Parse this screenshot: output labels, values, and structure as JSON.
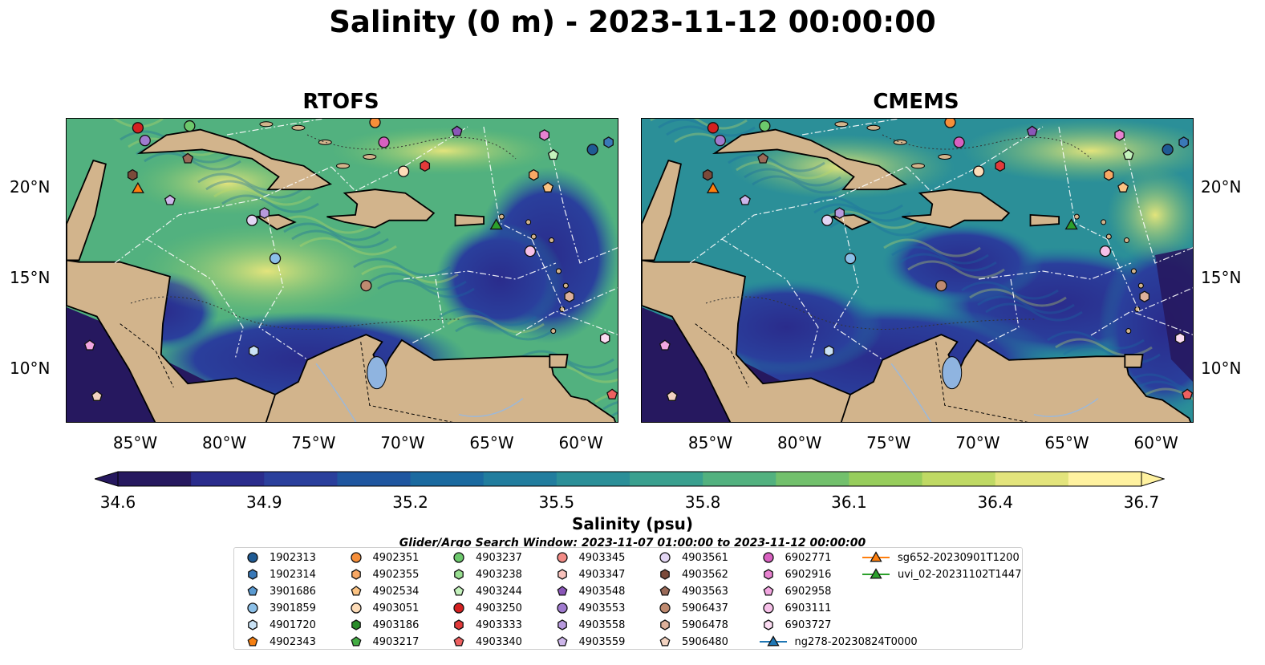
{
  "title": "Salinity (0 m) - 2023-11-12 00:00:00",
  "panels": [
    {
      "name": "RTOFS"
    },
    {
      "name": "CMEMS"
    }
  ],
  "lon_ticks": [
    "85°W",
    "80°W",
    "75°W",
    "70°W",
    "65°W",
    "60°W"
  ],
  "lat_ticks": [
    "20°N",
    "15°N",
    "10°N"
  ],
  "colorbar": {
    "label": "Salinity (psu)",
    "ticks": [
      "34.6",
      "34.9",
      "35.2",
      "35.5",
      "35.8",
      "36.1",
      "36.4",
      "36.7"
    ],
    "colors": [
      "#26185f",
      "#2a2c8c",
      "#2a3f9c",
      "#1f56a0",
      "#1b6aa0",
      "#217d9e",
      "#2b8f98",
      "#3aa08f",
      "#52b17f",
      "#72c06c",
      "#97cd5c",
      "#bfd964",
      "#e3e47c",
      "#fff2a0"
    ]
  },
  "search_window": "Glider/Argo Search Window: 2023-11-07 01:00:00 to 2023-11-12 00:00:00",
  "legend": [
    {
      "label": "1902313",
      "shape": "circle",
      "color": "#1f5b94"
    },
    {
      "label": "1902314",
      "shape": "hexagon",
      "color": "#3a79b8"
    },
    {
      "label": "3901686",
      "shape": "pentagon",
      "color": "#5a9ad1"
    },
    {
      "label": "3901859",
      "shape": "circle",
      "color": "#8cc0e8"
    },
    {
      "label": "4901720",
      "shape": "hexagon",
      "color": "#c9e2f5"
    },
    {
      "label": "4902343",
      "shape": "pentagon",
      "color": "#f57f11"
    },
    {
      "label": "4902351",
      "shape": "circle",
      "color": "#f78f3a"
    },
    {
      "label": "4902355",
      "shape": "hexagon",
      "color": "#f9a864"
    },
    {
      "label": "4902534",
      "shape": "pentagon",
      "color": "#fbc383"
    },
    {
      "label": "4903051",
      "shape": "circle",
      "color": "#fddcb8"
    },
    {
      "label": "4903186",
      "shape": "hexagon",
      "color": "#2a8c2a"
    },
    {
      "label": "4903217",
      "shape": "pentagon",
      "color": "#44ad44"
    },
    {
      "label": "4903237",
      "shape": "circle",
      "color": "#6cc86c"
    },
    {
      "label": "4903238",
      "shape": "hexagon",
      "color": "#98de90"
    },
    {
      "label": "4903244",
      "shape": "pentagon",
      "color": "#c4f2bc"
    },
    {
      "label": "4903250",
      "shape": "circle",
      "color": "#d42020"
    },
    {
      "label": "4903333",
      "shape": "hexagon",
      "color": "#e33a3a"
    },
    {
      "label": "4903340",
      "shape": "pentagon",
      "color": "#ef6060"
    },
    {
      "label": "4903345",
      "shape": "circle",
      "color": "#f28b86"
    },
    {
      "label": "4903347",
      "shape": "hexagon",
      "color": "#f9c2bc"
    },
    {
      "label": "4903548",
      "shape": "pentagon",
      "color": "#8a56b8"
    },
    {
      "label": "4903553",
      "shape": "circle",
      "color": "#a07bcf"
    },
    {
      "label": "4903558",
      "shape": "hexagon",
      "color": "#b89ade"
    },
    {
      "label": "4903559",
      "shape": "pentagon",
      "color": "#cdb6ea"
    },
    {
      "label": "4903561",
      "shape": "circle",
      "color": "#e3d6f4"
    },
    {
      "label": "4903562",
      "shape": "hexagon",
      "color": "#7b4a3a"
    },
    {
      "label": "4903563",
      "shape": "pentagon",
      "color": "#9a6a58"
    },
    {
      "label": "5906437",
      "shape": "circle",
      "color": "#bf8a70"
    },
    {
      "label": "5906478",
      "shape": "hexagon",
      "color": "#ddb09a"
    },
    {
      "label": "5906480",
      "shape": "pentagon",
      "color": "#f2d2c0"
    },
    {
      "label": "6902771",
      "shape": "circle",
      "color": "#d860c0"
    },
    {
      "label": "6902916",
      "shape": "hexagon",
      "color": "#e882d0"
    },
    {
      "label": "6902958",
      "shape": "pentagon",
      "color": "#f2a6e0"
    },
    {
      "label": "6903111",
      "shape": "circle",
      "color": "#f6c0e8"
    },
    {
      "label": "6903727",
      "shape": "hexagon",
      "color": "#fbdcf2"
    },
    {
      "label": "ng278-20230824T0000",
      "shape": "triangle",
      "color": "#1f77b4"
    },
    {
      "label": "sg652-20230901T1200",
      "shape": "triangle",
      "color": "#ff7f0e"
    },
    {
      "label": "uvi_02-20231102T1447",
      "shape": "triangle",
      "color": "#2ca02c"
    }
  ],
  "markers": [
    {
      "id": "4903250",
      "lon": -85.0,
      "lat": 23.3
    },
    {
      "id": "4903553",
      "lon": -84.6,
      "lat": 22.6
    },
    {
      "id": "4903237",
      "lon": -82.1,
      "lat": 23.4
    },
    {
      "id": "4903562",
      "lon": -85.3,
      "lat": 20.7
    },
    {
      "id": "sg652-20230901T1200",
      "lon": -85.0,
      "lat": 19.9
    },
    {
      "id": "4903559",
      "lon": -83.2,
      "lat": 19.3
    },
    {
      "id": "4903563",
      "lon": -82.2,
      "lat": 21.6
    },
    {
      "id": "4903561",
      "lon": -78.6,
      "lat": 18.2
    },
    {
      "id": "4903558",
      "lon": -77.9,
      "lat": 18.6
    },
    {
      "id": "3901859",
      "lon": -77.3,
      "lat": 16.1
    },
    {
      "id": "4901720",
      "lon": -78.5,
      "lat": 11.0
    },
    {
      "id": "5906437",
      "lon": -72.2,
      "lat": 14.6
    },
    {
      "id": "4903051",
      "lon": -70.1,
      "lat": 20.9
    },
    {
      "id": "6902771",
      "lon": -71.2,
      "lat": 22.5
    },
    {
      "id": "4902351",
      "lon": -71.7,
      "lat": 23.6
    },
    {
      "id": "4903333",
      "lon": -68.9,
      "lat": 21.2
    },
    {
      "id": "4903548",
      "lon": -67.1,
      "lat": 23.1
    },
    {
      "id": "uvi_02-20231102T1447",
      "lon": -64.9,
      "lat": 17.9
    },
    {
      "id": "6903111",
      "lon": -63.0,
      "lat": 16.5
    },
    {
      "id": "4902355",
      "lon": -62.8,
      "lat": 20.7
    },
    {
      "id": "6902916",
      "lon": -62.2,
      "lat": 22.9
    },
    {
      "id": "4903244",
      "lon": -61.7,
      "lat": 21.8
    },
    {
      "id": "4902534",
      "lon": -62.0,
      "lat": 20.0
    },
    {
      "id": "1902313",
      "lon": -59.5,
      "lat": 22.1
    },
    {
      "id": "1902314",
      "lon": -58.6,
      "lat": 22.5
    },
    {
      "id": "5906478",
      "lon": -60.8,
      "lat": 14.0
    },
    {
      "id": "6903727",
      "lon": -58.8,
      "lat": 11.7
    },
    {
      "id": "4903340",
      "lon": -58.4,
      "lat": 8.6
    },
    {
      "id": "6902958",
      "lon": -87.7,
      "lat": 11.3
    },
    {
      "id": "5906480",
      "lon": -87.3,
      "lat": 8.5
    }
  ]
}
